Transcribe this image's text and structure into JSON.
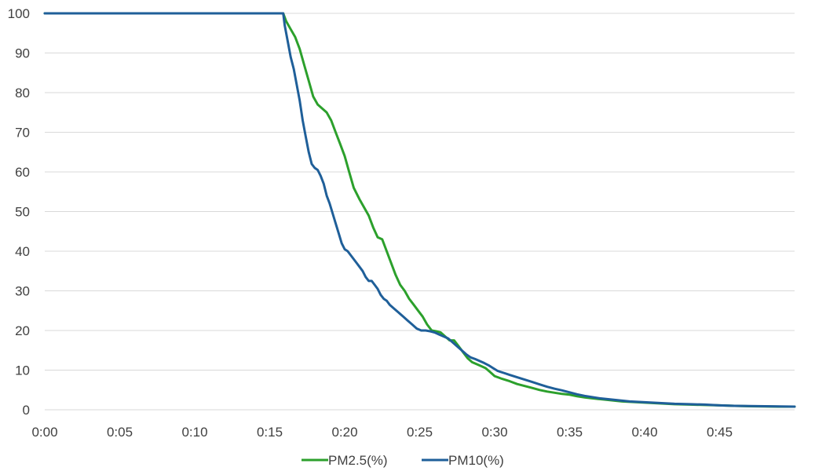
{
  "chart_data": {
    "type": "line",
    "title": "",
    "xlabel": "",
    "ylabel": "",
    "xlim": [
      0,
      50
    ],
    "ylim": [
      0,
      100
    ],
    "x_unit": "minutes",
    "x_ticks": [
      0,
      5,
      10,
      15,
      20,
      25,
      30,
      35,
      40,
      45
    ],
    "x_tick_labels": [
      "0:00",
      "0:05",
      "0:10",
      "0:15",
      "0:20",
      "0:25",
      "0:30",
      "0:35",
      "0:40",
      "0:45"
    ],
    "y_ticks": [
      0,
      10,
      20,
      30,
      40,
      50,
      60,
      70,
      80,
      90,
      100
    ],
    "y_tick_labels": [
      "0",
      "10",
      "20",
      "30",
      "40",
      "50",
      "60",
      "70",
      "80",
      "90",
      "100"
    ],
    "grid": "horizontal",
    "legend_position": "bottom-center",
    "series": [
      {
        "name": "PM2.5(%)",
        "color": "#2ca02c",
        "points": [
          [
            0,
            100
          ],
          [
            15.9,
            100
          ],
          [
            16.1,
            98
          ],
          [
            16.4,
            96
          ],
          [
            16.7,
            94
          ],
          [
            17.0,
            91
          ],
          [
            17.3,
            87
          ],
          [
            17.6,
            83
          ],
          [
            17.9,
            79
          ],
          [
            18.2,
            77
          ],
          [
            18.5,
            76
          ],
          [
            18.8,
            75
          ],
          [
            19.1,
            73
          ],
          [
            19.4,
            70
          ],
          [
            19.7,
            67
          ],
          [
            20.0,
            64
          ],
          [
            20.3,
            60
          ],
          [
            20.6,
            56
          ],
          [
            21.0,
            53
          ],
          [
            21.3,
            51
          ],
          [
            21.6,
            49
          ],
          [
            21.9,
            46
          ],
          [
            22.2,
            43.5
          ],
          [
            22.5,
            43
          ],
          [
            22.8,
            40
          ],
          [
            23.1,
            37
          ],
          [
            23.4,
            34
          ],
          [
            23.7,
            31.5
          ],
          [
            24.0,
            30
          ],
          [
            24.3,
            28
          ],
          [
            24.6,
            26.5
          ],
          [
            24.9,
            25
          ],
          [
            25.2,
            23.5
          ],
          [
            25.5,
            21.5
          ],
          [
            25.8,
            20
          ],
          [
            26.1,
            19.8
          ],
          [
            26.4,
            19.5
          ],
          [
            26.7,
            18.5
          ],
          [
            27.0,
            17.5
          ],
          [
            27.3,
            17.5
          ],
          [
            27.6,
            16
          ],
          [
            27.9,
            14.5
          ],
          [
            28.2,
            13
          ],
          [
            28.5,
            12
          ],
          [
            28.8,
            11.5
          ],
          [
            29.1,
            11
          ],
          [
            29.4,
            10.5
          ],
          [
            29.7,
            9.5
          ],
          [
            30.0,
            8.5
          ],
          [
            30.5,
            7.8
          ],
          [
            31.0,
            7.2
          ],
          [
            31.5,
            6.5
          ],
          [
            32.0,
            6
          ],
          [
            32.5,
            5.5
          ],
          [
            33.0,
            5
          ],
          [
            33.5,
            4.6
          ],
          [
            34.0,
            4.3
          ],
          [
            34.5,
            4
          ],
          [
            35.0,
            3.8
          ],
          [
            35.5,
            3.4
          ],
          [
            36.0,
            3.1
          ],
          [
            36.5,
            2.9
          ],
          [
            37.0,
            2.7
          ],
          [
            37.5,
            2.5
          ],
          [
            38.0,
            2.3
          ],
          [
            38.5,
            2.1
          ],
          [
            39.0,
            2
          ],
          [
            39.5,
            1.9
          ],
          [
            40.0,
            1.8
          ],
          [
            41.0,
            1.6
          ],
          [
            42.0,
            1.4
          ],
          [
            43.0,
            1.3
          ],
          [
            44.0,
            1.2
          ],
          [
            45.0,
            1.1
          ],
          [
            46.0,
            1
          ],
          [
            47.0,
            0.9
          ],
          [
            48.0,
            0.85
          ],
          [
            49.0,
            0.8
          ],
          [
            50.0,
            0.8
          ]
        ]
      },
      {
        "name": "PM10(%)",
        "color": "#1f5f99",
        "points": [
          [
            0,
            100
          ],
          [
            15.9,
            100
          ],
          [
            16.0,
            97
          ],
          [
            16.2,
            93
          ],
          [
            16.4,
            89
          ],
          [
            16.6,
            86
          ],
          [
            16.8,
            82
          ],
          [
            17.0,
            78
          ],
          [
            17.2,
            73
          ],
          [
            17.4,
            69
          ],
          [
            17.6,
            65
          ],
          [
            17.8,
            62
          ],
          [
            18.0,
            61
          ],
          [
            18.2,
            60.5
          ],
          [
            18.4,
            59
          ],
          [
            18.6,
            57
          ],
          [
            18.8,
            54
          ],
          [
            19.0,
            52
          ],
          [
            19.2,
            49.5
          ],
          [
            19.4,
            47
          ],
          [
            19.6,
            44.5
          ],
          [
            19.8,
            42
          ],
          [
            20.0,
            40.5
          ],
          [
            20.2,
            40
          ],
          [
            20.4,
            39
          ],
          [
            20.6,
            38
          ],
          [
            20.8,
            37
          ],
          [
            21.0,
            36
          ],
          [
            21.2,
            35
          ],
          [
            21.4,
            33.5
          ],
          [
            21.6,
            32.5
          ],
          [
            21.8,
            32.5
          ],
          [
            22.0,
            31.5
          ],
          [
            22.2,
            30.5
          ],
          [
            22.4,
            29
          ],
          [
            22.6,
            28
          ],
          [
            22.8,
            27.5
          ],
          [
            23.0,
            26.5
          ],
          [
            23.3,
            25.5
          ],
          [
            23.6,
            24.5
          ],
          [
            23.9,
            23.5
          ],
          [
            24.2,
            22.5
          ],
          [
            24.5,
            21.5
          ],
          [
            24.8,
            20.5
          ],
          [
            25.1,
            20
          ],
          [
            25.4,
            20
          ],
          [
            25.7,
            19.8
          ],
          [
            26.0,
            19.5
          ],
          [
            26.3,
            19
          ],
          [
            26.6,
            18.5
          ],
          [
            26.9,
            18
          ],
          [
            27.2,
            17
          ],
          [
            27.5,
            16
          ],
          [
            27.8,
            15
          ],
          [
            28.1,
            14
          ],
          [
            28.4,
            13.2
          ],
          [
            28.7,
            12.8
          ],
          [
            29.0,
            12.3
          ],
          [
            29.3,
            11.8
          ],
          [
            29.6,
            11.2
          ],
          [
            29.9,
            10.5
          ],
          [
            30.2,
            9.8
          ],
          [
            30.6,
            9.3
          ],
          [
            31.0,
            8.8
          ],
          [
            31.5,
            8.2
          ],
          [
            32.0,
            7.6
          ],
          [
            32.5,
            7
          ],
          [
            33.0,
            6.4
          ],
          [
            33.5,
            5.8
          ],
          [
            34.0,
            5.3
          ],
          [
            34.5,
            4.9
          ],
          [
            35.0,
            4.4
          ],
          [
            35.5,
            3.9
          ],
          [
            36.0,
            3.5
          ],
          [
            36.5,
            3.2
          ],
          [
            37.0,
            2.9
          ],
          [
            37.5,
            2.7
          ],
          [
            38.0,
            2.5
          ],
          [
            38.5,
            2.3
          ],
          [
            39.0,
            2.1
          ],
          [
            39.5,
            2
          ],
          [
            40.0,
            1.9
          ],
          [
            41.0,
            1.7
          ],
          [
            42.0,
            1.5
          ],
          [
            43.0,
            1.4
          ],
          [
            44.0,
            1.3
          ],
          [
            45.0,
            1.1
          ],
          [
            46.0,
            1
          ],
          [
            47.0,
            0.95
          ],
          [
            48.0,
            0.9
          ],
          [
            49.0,
            0.85
          ],
          [
            50.0,
            0.8
          ]
        ]
      }
    ]
  }
}
